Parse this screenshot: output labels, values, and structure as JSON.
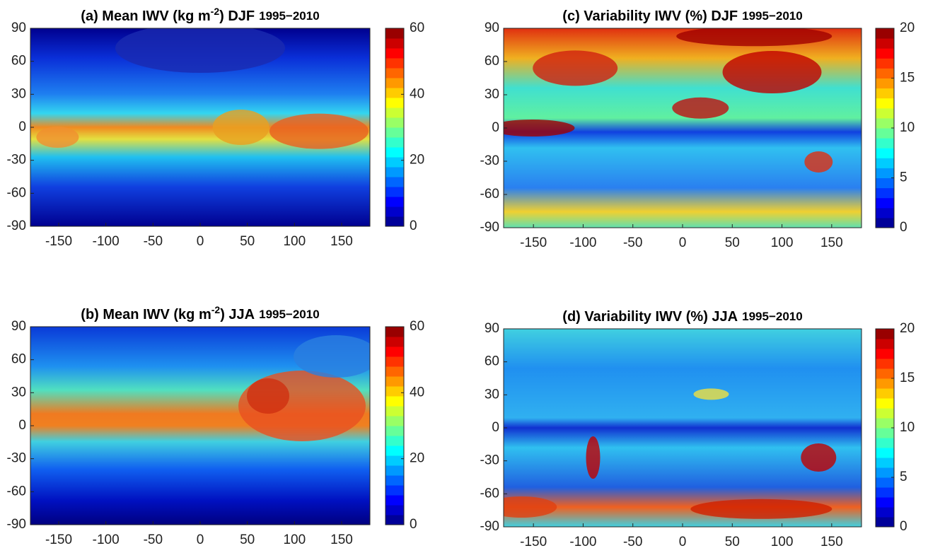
{
  "panels": [
    {
      "title": {
        "text": "(a) Mean IWV (kg m",
        "sup": "-2",
        "rest": ") DJF",
        "period": "1995−2010"
      },
      "xlim": [
        -180,
        180
      ],
      "ylim": [
        -90,
        90
      ],
      "xticks": [
        -150,
        -100,
        -50,
        0,
        50,
        100,
        150
      ],
      "yticks": [
        -90,
        -60,
        -30,
        0,
        30,
        60,
        90
      ],
      "colorbar": {
        "lim": [
          0,
          60
        ],
        "ticks": [
          0,
          20,
          40,
          60
        ]
      }
    },
    {
      "title": {
        "text": "(b) Mean IWV (kg m",
        "sup": "-2",
        "rest": ") JJA",
        "period": "1995−2010"
      },
      "xlim": [
        -180,
        180
      ],
      "ylim": [
        -90,
        90
      ],
      "xticks": [
        -150,
        -100,
        -50,
        0,
        50,
        100,
        150
      ],
      "yticks": [
        -90,
        -60,
        -30,
        0,
        30,
        60,
        90
      ],
      "colorbar": {
        "lim": [
          0,
          60
        ],
        "ticks": [
          0,
          20,
          40,
          60
        ]
      }
    },
    {
      "title": {
        "text": "(c) Variability IWV (%) DJF",
        "period": "1995−2010"
      },
      "xlim": [
        -180,
        180
      ],
      "ylim": [
        -90,
        90
      ],
      "xticks": [
        -150,
        -100,
        -50,
        0,
        50,
        100,
        150
      ],
      "yticks": [
        -90,
        -60,
        -30,
        0,
        30,
        60,
        90
      ],
      "colorbar": {
        "lim": [
          0,
          20
        ],
        "ticks": [
          0,
          5,
          10,
          15,
          20
        ]
      }
    },
    {
      "title": {
        "text": "(d) Variability IWV (%) JJA",
        "period": "1995−2010"
      },
      "xlim": [
        -180,
        180
      ],
      "ylim": [
        -90,
        90
      ],
      "xticks": [
        -150,
        -100,
        -50,
        0,
        50,
        100,
        150
      ],
      "yticks": [
        -90,
        -60,
        -30,
        0,
        30,
        60,
        90
      ],
      "colorbar": {
        "lim": [
          0,
          20
        ],
        "ticks": [
          0,
          5,
          10,
          15,
          20
        ]
      }
    }
  ]
}
